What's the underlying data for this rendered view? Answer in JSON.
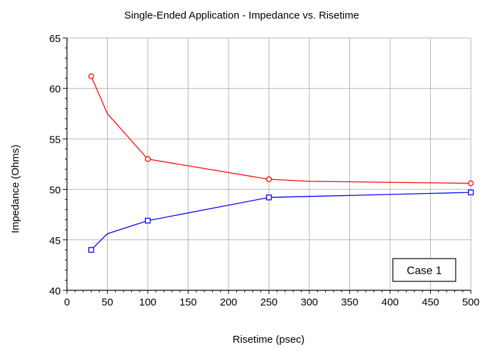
{
  "chart_data": {
    "type": "line",
    "title": "Single-Ended Application - Impedance vs. Risetime",
    "xlabel": "Risetime (psec)",
    "ylabel": "Impedance (Ohms)",
    "xlim": [
      0,
      500
    ],
    "ylim": [
      40,
      65
    ],
    "x_ticks": [
      0,
      50,
      100,
      150,
      200,
      250,
      300,
      350,
      400,
      450,
      500
    ],
    "y_ticks": [
      40,
      45,
      50,
      55,
      60,
      65
    ],
    "grid": true,
    "legend": "none",
    "annotation": "Case 1",
    "series": [
      {
        "color": "#ff0000",
        "marker": "circle",
        "x": [
          30,
          50,
          100,
          250,
          300,
          500
        ],
        "y": [
          61.2,
          57.5,
          53.0,
          51.0,
          50.8,
          50.6
        ],
        "marker_points": [
          0,
          2,
          3,
          5
        ]
      },
      {
        "color": "#0000ff",
        "marker": "square",
        "x": [
          30,
          50,
          100,
          250,
          500
        ],
        "y": [
          44.0,
          45.6,
          46.9,
          49.2,
          49.7
        ],
        "marker_points": [
          0,
          2,
          3,
          4
        ]
      }
    ]
  }
}
